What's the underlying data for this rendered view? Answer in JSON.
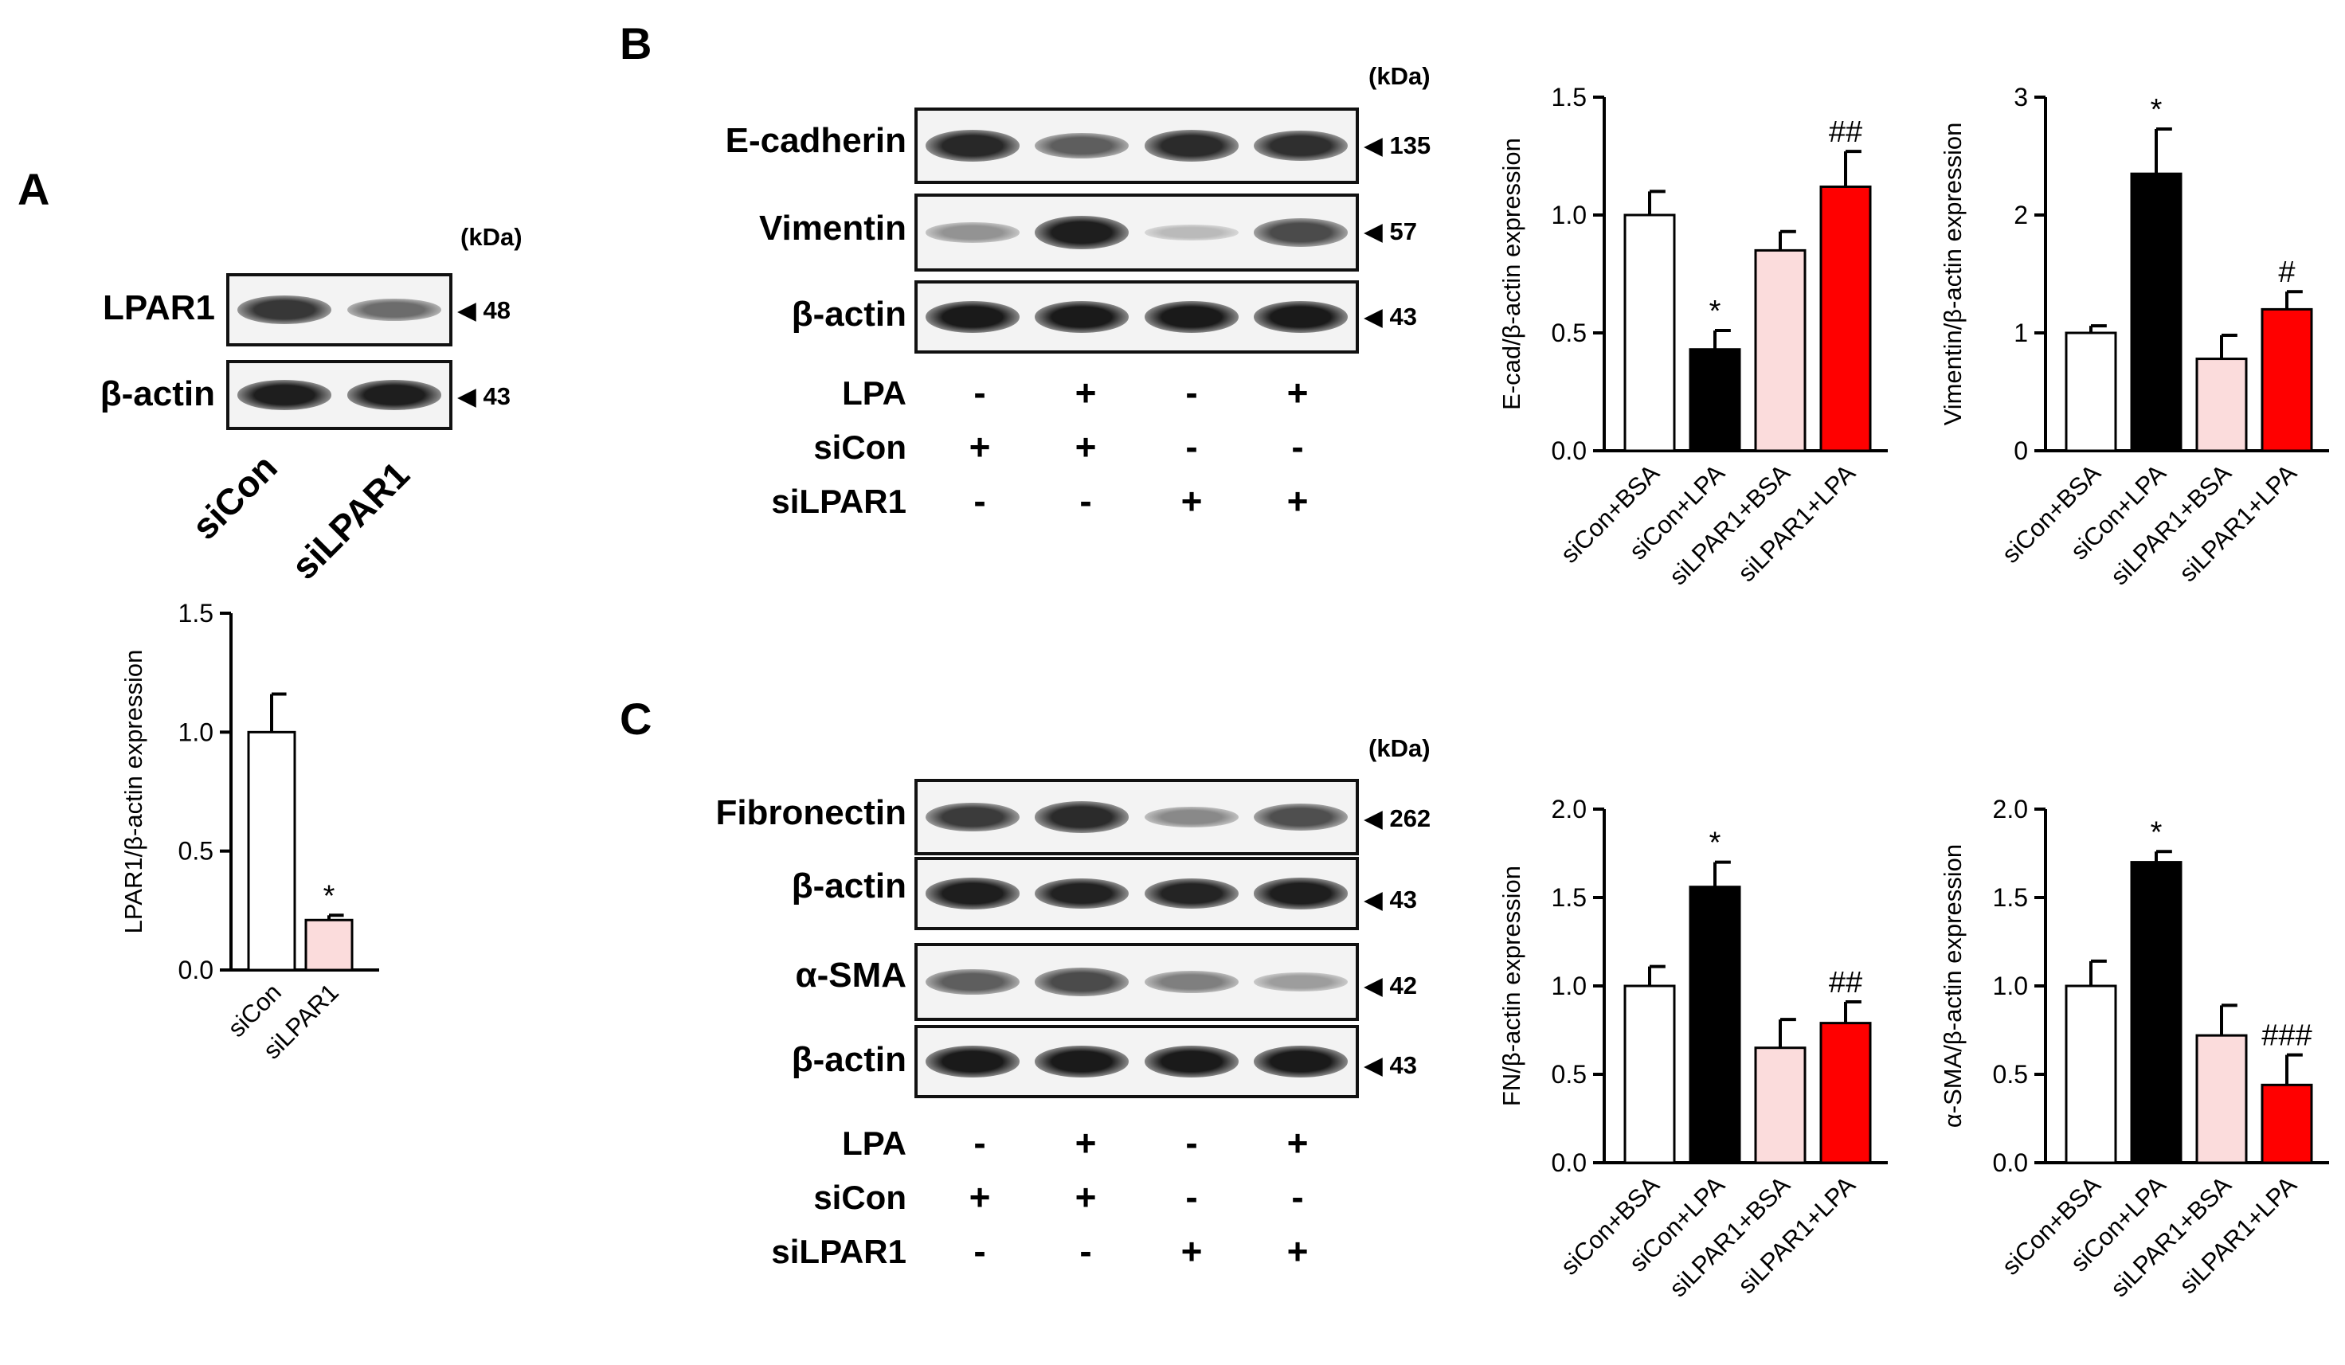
{
  "panels": {
    "A": {
      "letter": "A",
      "kda_label": "(kDa)",
      "blots": [
        {
          "label": "LPAR1",
          "mw": "48",
          "intensity": [
            0.82,
            0.55
          ]
        },
        {
          "label": "β-actin",
          "mw": "43",
          "intensity": [
            0.95,
            0.95
          ]
        }
      ],
      "lanes": [
        "siCon",
        "siLPAR1"
      ]
    },
    "B": {
      "letter": "B",
      "kda_label": "(kDa)",
      "blots": [
        {
          "label": "E-cadherin",
          "mw": "135",
          "intensity": [
            0.9,
            0.62,
            0.88,
            0.86
          ]
        },
        {
          "label": "Vimentin",
          "mw": "57",
          "intensity": [
            0.35,
            0.95,
            0.15,
            0.72
          ]
        },
        {
          "label": "β-actin",
          "mw": "43",
          "intensity": [
            0.97,
            0.97,
            0.97,
            0.97
          ]
        }
      ],
      "conditions": [
        {
          "label": "LPA",
          "signs": [
            "-",
            "+",
            "-",
            "+"
          ]
        },
        {
          "label": "siCon",
          "signs": [
            "+",
            "+",
            "-",
            "-"
          ]
        },
        {
          "label": "siLPAR1",
          "signs": [
            "-",
            "-",
            "+",
            "+"
          ]
        }
      ]
    },
    "C": {
      "letter": "C",
      "kda_label": "(kDa)",
      "blots": [
        {
          "label": "Fibronectin",
          "mw": "262",
          "intensity": [
            0.8,
            0.88,
            0.4,
            0.7
          ]
        },
        {
          "label": "β-actin",
          "mw": "43",
          "intensity": [
            0.95,
            0.93,
            0.92,
            0.95
          ]
        },
        {
          "label": "α-SMA",
          "mw": "42",
          "intensity": [
            0.62,
            0.72,
            0.45,
            0.3
          ]
        },
        {
          "label": "β-actin",
          "mw": "43",
          "intensity": [
            0.97,
            0.97,
            0.97,
            0.97
          ]
        }
      ],
      "conditions": [
        {
          "label": "LPA",
          "signs": [
            "-",
            "+",
            "-",
            "+"
          ]
        },
        {
          "label": "siCon",
          "signs": [
            "+",
            "+",
            "-",
            "-"
          ]
        },
        {
          "label": "siLPAR1",
          "signs": [
            "-",
            "-",
            "+",
            "+"
          ]
        }
      ]
    }
  },
  "colors": {
    "siCon_BSA": "#ffffff",
    "siCon_LPA": "#000000",
    "siLPAR1_BSA": "#fbdcdc",
    "siLPAR1_LPA": "#ff0000"
  },
  "chart_data": [
    {
      "id": "lpar1",
      "type": "bar",
      "categories": [
        "siCon",
        "siLPAR1"
      ],
      "values": [
        1.0,
        0.21
      ],
      "errors": [
        0.16,
        0.02
      ],
      "annotations": [
        "",
        "*"
      ],
      "fills": [
        "#ffffff",
        "#fbdcdc"
      ],
      "ylabel": "LPAR1/β-actin expression",
      "ylim": [
        0,
        1.5
      ],
      "yticks": [
        "0.0",
        "0.5",
        "1.0",
        "1.5"
      ],
      "grid": false
    },
    {
      "id": "ecad",
      "type": "bar",
      "categories": [
        "siCon+BSA",
        "siCon+LPA",
        "siLPAR1+BSA",
        "siLPAR1+LPA"
      ],
      "values": [
        1.0,
        0.43,
        0.85,
        1.12
      ],
      "errors": [
        0.1,
        0.08,
        0.08,
        0.15
      ],
      "annotations": [
        "",
        "*",
        "",
        "##"
      ],
      "fills": [
        "#ffffff",
        "#000000",
        "#fbdcdc",
        "#ff0000"
      ],
      "ylabel": "E-cad/β-actin expression",
      "ylim": [
        0,
        1.5
      ],
      "yticks": [
        "0.0",
        "0.5",
        "1.0",
        "1.5"
      ],
      "grid": false
    },
    {
      "id": "vim",
      "type": "bar",
      "categories": [
        "siCon+BSA",
        "siCon+LPA",
        "siLPAR1+BSA",
        "siLPAR1+LPA"
      ],
      "values": [
        1.0,
        2.35,
        0.78,
        1.2
      ],
      "errors": [
        0.06,
        0.38,
        0.2,
        0.15
      ],
      "annotations": [
        "",
        "*",
        "",
        "#"
      ],
      "fills": [
        "#ffffff",
        "#000000",
        "#fbdcdc",
        "#ff0000"
      ],
      "ylabel": "Vimentin/β-actin expression",
      "ylim": [
        0,
        3
      ],
      "yticks": [
        "0",
        "1",
        "2",
        "3"
      ],
      "grid": false
    },
    {
      "id": "fn",
      "type": "bar",
      "categories": [
        "siCon+BSA",
        "siCon+LPA",
        "siLPAR1+BSA",
        "siLPAR1+LPA"
      ],
      "values": [
        1.0,
        1.56,
        0.65,
        0.79
      ],
      "errors": [
        0.11,
        0.14,
        0.16,
        0.12
      ],
      "annotations": [
        "",
        "*",
        "",
        "##"
      ],
      "fills": [
        "#ffffff",
        "#000000",
        "#fbdcdc",
        "#ff0000"
      ],
      "ylabel": "FN/β-actin expression",
      "ylim": [
        0,
        2.0
      ],
      "yticks": [
        "0.0",
        "0.5",
        "1.0",
        "1.5",
        "2.0"
      ],
      "grid": false
    },
    {
      "id": "sma",
      "type": "bar",
      "categories": [
        "siCon+BSA",
        "siCon+LPA",
        "siLPAR1+BSA",
        "siLPAR1+LPA"
      ],
      "values": [
        1.0,
        1.7,
        0.72,
        0.44
      ],
      "errors": [
        0.14,
        0.06,
        0.17,
        0.17
      ],
      "annotations": [
        "",
        "*",
        "",
        "###"
      ],
      "fills": [
        "#ffffff",
        "#000000",
        "#fbdcdc",
        "#ff0000"
      ],
      "ylabel": "α-SMA/β-actin expression",
      "ylim": [
        0,
        2.0
      ],
      "yticks": [
        "0.0",
        "0.5",
        "1.0",
        "1.5",
        "2.0"
      ],
      "grid": false
    }
  ]
}
